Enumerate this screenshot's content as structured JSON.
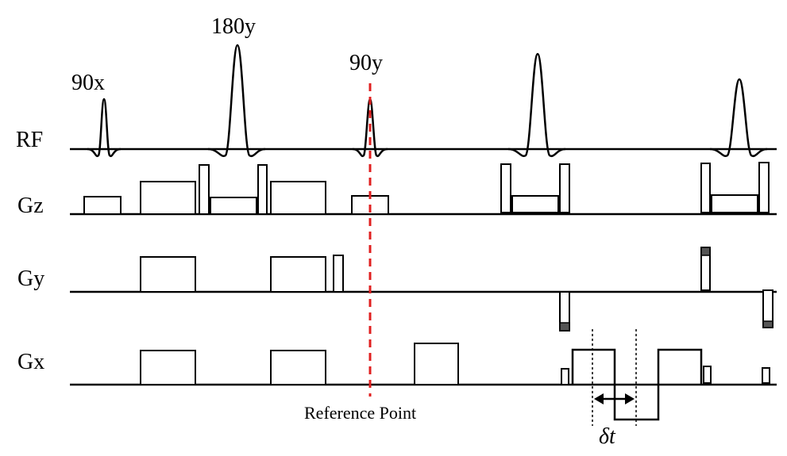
{
  "rows": {
    "rf": "RF",
    "gz": "Gz",
    "gy": "Gy",
    "gx": "Gx"
  },
  "pulses": {
    "p1": "90x",
    "p2": "180y",
    "p3": "90y"
  },
  "reference": "Reference Point",
  "delta": "δt",
  "colors": {
    "reference_line": "#e02020",
    "line": "#000000",
    "shaded_block": "#555555"
  }
}
